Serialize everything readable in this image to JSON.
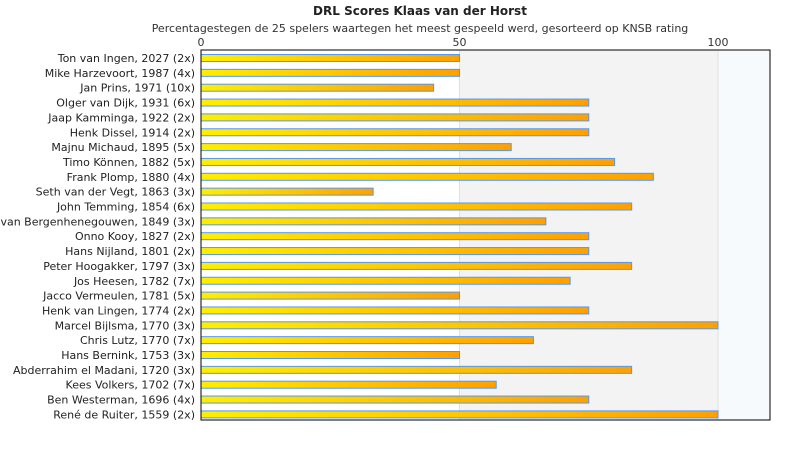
{
  "chart_data": {
    "type": "bar",
    "orientation": "horizontal",
    "title": "DRL Scores Klaas van der Horst",
    "subtitle": "Percentagestegen de 25 spelers waartegen het meest gespeeld werd, gesorteerd op KNSB rating",
    "xlim": [
      0,
      110
    ],
    "xticks": [
      0,
      50,
      100
    ],
    "grid": true,
    "bar_color_start": "#ffee00",
    "bar_color_end": "#ffa000",
    "bar_border": "#5599ee",
    "categories": [
      "Ton van Ingen, 2027 (2x)",
      "Mike Harzevoort, 1987 (4x)",
      "Jan Prins, 1971 (10x)",
      "Olger van Dijk, 1931 (6x)",
      "Jaap Kamminga, 1922 (2x)",
      "Henk Dissel, 1914 (2x)",
      "Majnu Michaud, 1895 (5x)",
      "Timo Können, 1882 (5x)",
      "Frank Plomp, 1880 (4x)",
      "Seth van der Vegt, 1863 (3x)",
      "John Temming, 1854 (6x)",
      "van Bergenhenegouwen, 1849 (3x)",
      "Onno Kooy, 1827 (2x)",
      "Hans Nijland, 1801 (2x)",
      "Peter Hoogakker, 1797 (3x)",
      "Jos Heesen, 1782 (7x)",
      "Jacco Vermeulen, 1781 (5x)",
      "Henk van Lingen, 1774 (2x)",
      "Marcel Bijlsma, 1770 (3x)",
      "Chris Lutz, 1770 (7x)",
      "Hans Bernink, 1753 (3x)",
      "Abderrahim el Madani, 1720 (3x)",
      "Kees Volkers, 1702 (7x)",
      "Ben Westerman, 1696 (4x)",
      "René de Ruiter, 1559 (2x)"
    ],
    "values": [
      50,
      50,
      45,
      75,
      75,
      75,
      60,
      80,
      87.5,
      33.3,
      83.3,
      66.7,
      75,
      75,
      83.3,
      71.4,
      50,
      75,
      100,
      64.3,
      50,
      83.3,
      57.1,
      75,
      100
    ]
  }
}
